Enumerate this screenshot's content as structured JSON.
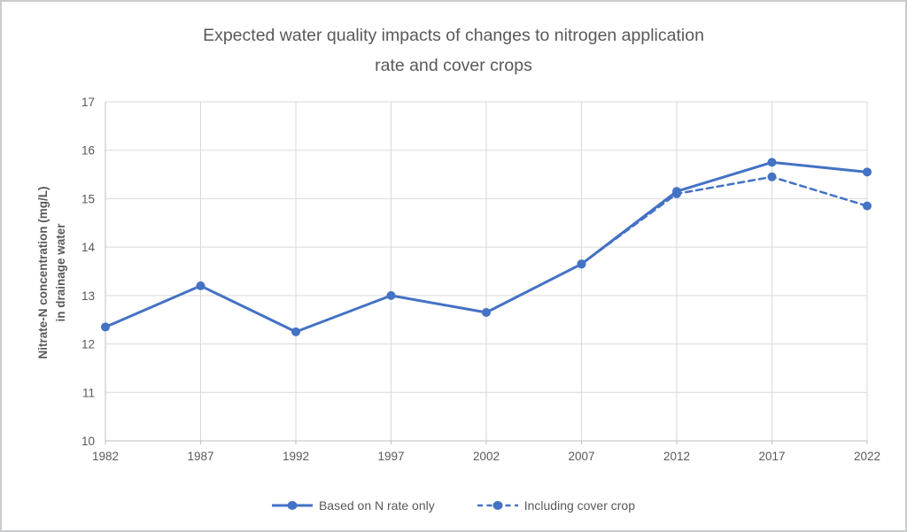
{
  "window": {
    "kind": "excel-style chart image",
    "background": "#FFFFFF",
    "border_color": "#C9CBCD"
  },
  "chart_data": {
    "type": "line",
    "title": "Expected water quality impacts of changes to nitrogen application rate and cover crops",
    "title_lines": [
      "Expected water quality impacts of changes to nitrogen application",
      "rate and cover crops"
    ],
    "categories": [
      "1982",
      "1987",
      "1992",
      "1997",
      "2002",
      "2007",
      "2012",
      "2017",
      "2022"
    ],
    "series": [
      {
        "name": "Based on N rate only",
        "style": "solid",
        "values": [
          12.35,
          13.2,
          12.25,
          13.0,
          12.65,
          13.65,
          15.15,
          15.75,
          15.55
        ]
      },
      {
        "name": "Including cover crop",
        "style": "dashed",
        "values": [
          null,
          null,
          null,
          null,
          null,
          13.65,
          15.1,
          15.45,
          14.85
        ]
      }
    ],
    "xlabel": "",
    "ylabel": "Nitrate-N concentration (mg/L) in drainage water",
    "ylabel_lines": [
      "Nitrate-N concentration (mg/L)",
      "in drainage water"
    ],
    "ylim": [
      10,
      17
    ],
    "ytick_step": 1,
    "yticks": [
      "10",
      "11",
      "12",
      "13",
      "14",
      "15",
      "16",
      "17"
    ],
    "grid": true,
    "legend_position": "bottom",
    "colors": {
      "series_blue": "#4472C4",
      "gridline": "#D9D9D9",
      "axis_line": "#BFBFBF",
      "title_text": "#595959",
      "tick_text": "#595959",
      "legend_text": "#595959",
      "frame_border": "#C9CBCD",
      "background": "#FFFFFF"
    }
  }
}
